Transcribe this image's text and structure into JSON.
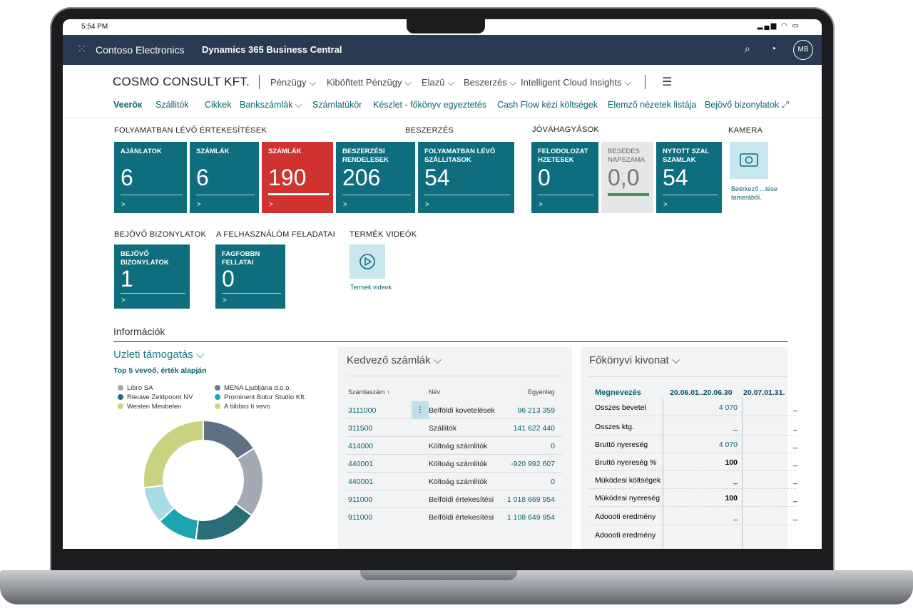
{
  "status_bar": {
    "time": "5:54 PM",
    "icons": "signal-wifi-battery"
  },
  "appbar": {
    "company": "Contoso Electronics",
    "product": "Dynamics 365 Business Central",
    "avatar": "MB",
    "icons": [
      "waffle-icon",
      "search-icon",
      "bell-icon"
    ]
  },
  "titlebar": {
    "company_title": "COSMO CONSULT KFT.",
    "menus": [
      "Pénzügy ⌵",
      "Kiböñtett Pénzügy ⌵",
      "Elazû ⌵",
      "Beszerzés ⌵",
      "Intelligent Cloud Insights ⌵"
    ]
  },
  "nav": {
    "items": [
      "Veeröк",
      "Szállitók",
      "Cikkek",
      "Bankszámlák ⌵",
      "Számlatükör",
      "Készlet - főkönyv egyeztetés",
      "Cash Flow kézi költségek",
      "Elemző nézetek listája",
      "Bejövő bizonylatok",
      "⤢"
    ]
  },
  "sections": {
    "folyamatban": "FOLYAMATBAN LÉVŐ ÉRTEKESÍTÉSEK",
    "beszerzes": "BESZERZÉS",
    "jovahagyasok": "JÓVÁHAGYÁSOK",
    "kamera": "KAMERA",
    "bejovo": "BEJÖVŐ BIZONYLATOK",
    "feladatai": "A FELHASZNÁLÓM FELADATAI",
    "videok": "TERMÉK VIDEÓK"
  },
  "tiles": [
    {
      "title": "AJÁNLATOK",
      "value": "6",
      "arrow": ">"
    },
    {
      "title": "SZÁMLÁK",
      "value": "6",
      "arrow": ">"
    },
    {
      "title": "SZÁMLÁK",
      "value": "190",
      "arrow": ">"
    },
    {
      "title": "BESZERZÉSI RENDELESEK",
      "value": "206",
      "arrow": ">"
    },
    {
      "title": "FOLYAMATBAN LÉVŐ SZÁLLITASOK",
      "value": "54",
      "arrow": ">"
    },
    {
      "title": "FELODOLOZAT HZETESEK",
      "value": "0",
      "arrow": ">"
    },
    {
      "title": "BESEDES NAPSZAMA",
      "value": "0,0",
      "arrow": ">"
    },
    {
      "title": "NYTOTT SZAL SZAMLAK",
      "value": "54",
      "arrow": ">"
    },
    {
      "title": "BEJÖVŐ BIZONYLATOK",
      "value": "1",
      "arrow": ">"
    },
    {
      "title": "FAGFOBBN FELLATAI",
      "value": "0",
      "arrow": ">"
    }
  ],
  "camera_label": "Beérkező ...tése tamerából.",
  "video_label": "Termék videok",
  "info": {
    "title": "Információk",
    "left_panel": {
      "title": "Uzleti támogatás ⌵",
      "subtitle": "Top 5 vevoő, érték alapján",
      "legend": [
        {
          "label": "Libro SA",
          "color": "#a3a9b0"
        },
        {
          "label": "Rleuwe Zeldpoont NV",
          "color": "#1f6f78"
        },
        {
          "label": "Westen Meubelen",
          "color": "#c9d27e"
        },
        {
          "label": "MENA Ljubljana d.o.o.",
          "color": "#6c7a8b"
        },
        {
          "label": "Prominent Butor Studio Kft.",
          "color": "#1ba5b0"
        },
        {
          "label": "A tiibbici ti vevo",
          "color": "#cdd87f"
        }
      ]
    },
    "chart_data": {
      "type": "pie",
      "categories": [
        "MENA Ljubljana d.o.o.",
        "Libro SA",
        "Rleuwe Zeldpoont NV",
        "Prominent Butor Studio Kft.",
        "A tiibbici ti vevo",
        "Westen Meubelen"
      ],
      "values": [
        16,
        19,
        17,
        11,
        10,
        27
      ],
      "colors": [
        "#5f6f84",
        "#a4aab2",
        "#2b6e79",
        "#1da5b1",
        "#a8dbe4",
        "#c9d27e"
      ]
    },
    "mid_panel": {
      "title": "Kedvező számlák ⌵",
      "headers": [
        "Számlaszám ↑",
        "Név",
        "Egyenleg"
      ],
      "rows": [
        [
          "3111000",
          "Belföldi kovetelések",
          "96 213 359"
        ],
        [
          "311500",
          "Szállitók",
          "141 622 440"
        ],
        [
          "414000",
          "Költoág számlitók",
          "0"
        ],
        [
          "440001",
          "Költoág számlitók",
          "-920 992 607"
        ],
        [
          "440001",
          "Költoág számlitók",
          "0"
        ],
        [
          "911000",
          "Belföldi értekesítési",
          "1 018 669 954"
        ],
        [
          "911000",
          "Belföldi értekesítési",
          "1 108 649 954"
        ]
      ]
    },
    "right_panel": {
      "title": "Főkönyvi kivonat ⌵",
      "headers": [
        "Megnevezés",
        "20.06.01..20.06.30",
        "20.07.01.31."
      ],
      "rows": [
        [
          "Osszes bevetel",
          "4 070",
          "_"
        ],
        [
          "Osszes ktg.",
          "_",
          "_"
        ],
        [
          "Bruttó nyereség",
          "4 070",
          "_"
        ],
        [
          "Bruttó nyereség %",
          "100",
          "_"
        ],
        [
          "Müködesi költségek",
          "_",
          "_"
        ],
        [
          "Müködesi nyereség",
          "100",
          "_"
        ],
        [
          "Adoooti eredmény",
          "_",
          "_"
        ],
        [
          "Adoooti eredmény",
          "",
          ""
        ]
      ]
    }
  }
}
